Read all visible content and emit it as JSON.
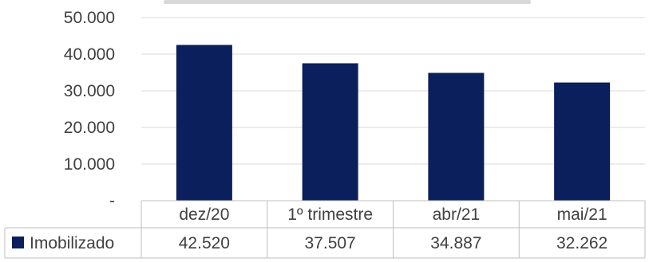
{
  "chart_data": {
    "type": "bar",
    "title": "",
    "xlabel": "",
    "ylabel": "",
    "ylim": [
      0,
      50000
    ],
    "y_ticks": [
      "-",
      "10.000",
      "20.000",
      "30.000",
      "40.000",
      "50.000"
    ],
    "y_tick_values": [
      0,
      10000,
      20000,
      30000,
      40000,
      50000
    ],
    "grid": true,
    "legend": "data-table-left",
    "categories": [
      "dez/20",
      "1º trimestre",
      "abr/21",
      "mai/21"
    ],
    "series": [
      {
        "name": "Imobilizado",
        "color": "#0a1f5c",
        "values": [
          42520,
          37507,
          34887,
          32262
        ],
        "value_labels": [
          "42.520",
          "37.507",
          "34.887",
          "32.262"
        ]
      }
    ]
  }
}
